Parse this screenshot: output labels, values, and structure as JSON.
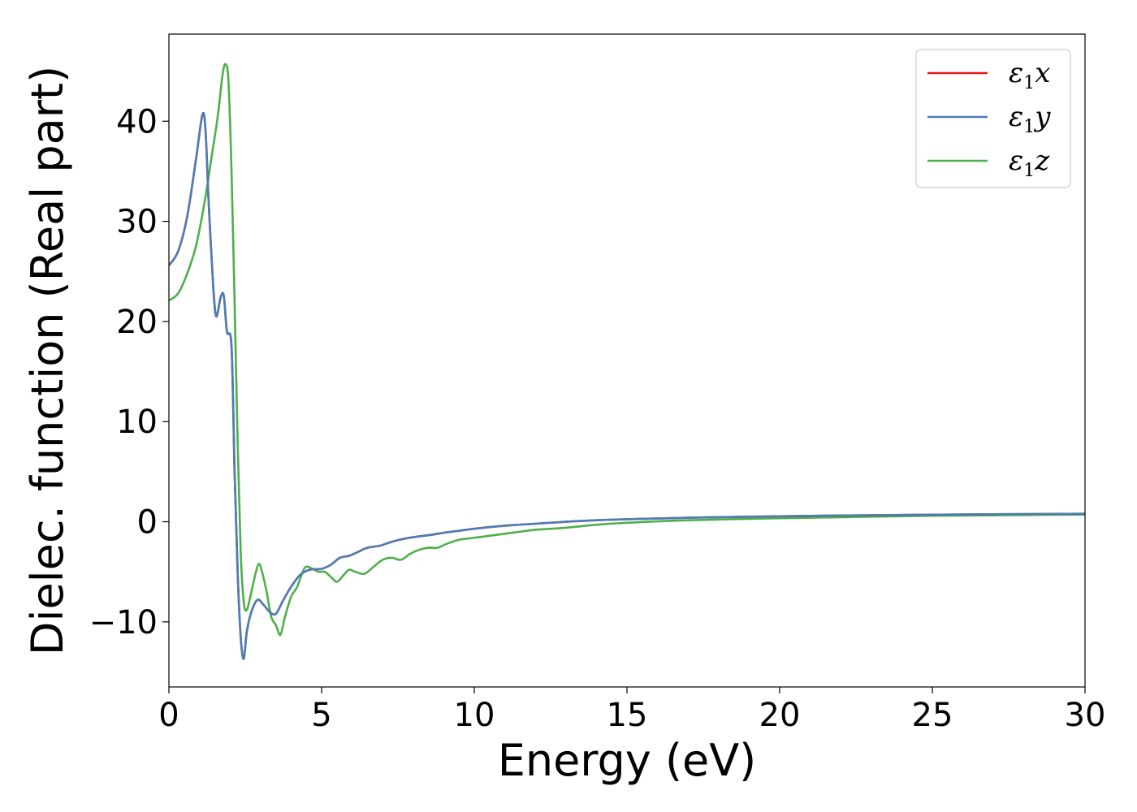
{
  "chart_data": {
    "type": "line",
    "title": "",
    "xlabel": "Energy (eV)",
    "ylabel": "Dielec. function (Real part)",
    "xlim": [
      0,
      30
    ],
    "ylim": [
      -16.5,
      48.7
    ],
    "xticks": [
      0,
      5,
      10,
      15,
      20,
      25,
      30
    ],
    "xtick_labels": [
      "0",
      "5",
      "10",
      "15",
      "20",
      "25",
      "30"
    ],
    "yticks": [
      -10,
      0,
      10,
      20,
      30,
      40
    ],
    "ytick_labels": [
      "−10",
      "0",
      "10",
      "20",
      "30",
      "40"
    ],
    "grid": false,
    "legend_position": "top-right",
    "series": [
      {
        "name": "ε1x",
        "legend_main": "ε",
        "legend_sub": "1",
        "legend_var": "x",
        "color": "#e41a1c",
        "x": [
          0,
          0.3,
          0.6,
          0.9,
          1.1,
          1.2,
          1.3,
          1.45,
          1.55,
          1.7,
          1.8,
          1.9,
          2.05,
          2.15,
          2.25,
          2.35,
          2.45,
          2.55,
          2.7,
          2.9,
          3.1,
          3.3,
          3.5,
          3.75,
          4.0,
          4.3,
          4.6,
          5.0,
          5.3,
          5.6,
          5.9,
          6.2,
          6.5,
          6.9,
          7.3,
          7.7,
          8.1,
          8.6,
          9.0,
          9.5,
          10.0,
          11.0,
          12.0,
          13.0,
          14.0,
          15.0,
          17.0,
          20.0,
          23.0,
          25.0,
          27.0,
          30.0
        ],
        "y": [
          25.6,
          27.0,
          30.5,
          36.5,
          40.7,
          39.0,
          32.0,
          23.5,
          20.5,
          22.5,
          22.5,
          19.0,
          17.5,
          5.0,
          -5.0,
          -11.5,
          -13.7,
          -11.0,
          -9.0,
          -7.8,
          -8.3,
          -9.0,
          -9.2,
          -7.8,
          -6.5,
          -5.3,
          -4.8,
          -4.7,
          -4.3,
          -3.6,
          -3.4,
          -3.0,
          -2.6,
          -2.4,
          -2.0,
          -1.7,
          -1.5,
          -1.3,
          -1.1,
          -0.9,
          -0.7,
          -0.4,
          -0.2,
          0.0,
          0.15,
          0.25,
          0.4,
          0.55,
          0.65,
          0.7,
          0.75,
          0.8
        ]
      },
      {
        "name": "ε1y",
        "legend_main": "ε",
        "legend_sub": "1",
        "legend_var": "y",
        "color": "#4a7eb5",
        "x": [
          0,
          0.3,
          0.6,
          0.9,
          1.1,
          1.2,
          1.3,
          1.45,
          1.55,
          1.7,
          1.8,
          1.9,
          2.05,
          2.15,
          2.25,
          2.35,
          2.45,
          2.55,
          2.7,
          2.9,
          3.1,
          3.3,
          3.5,
          3.75,
          4.0,
          4.3,
          4.6,
          5.0,
          5.3,
          5.6,
          5.9,
          6.2,
          6.5,
          6.9,
          7.3,
          7.7,
          8.1,
          8.6,
          9.0,
          9.5,
          10.0,
          11.0,
          12.0,
          13.0,
          14.0,
          15.0,
          17.0,
          20.0,
          23.0,
          25.0,
          27.0,
          30.0
        ],
        "y": [
          25.6,
          27.0,
          30.5,
          36.5,
          40.7,
          39.0,
          32.0,
          23.5,
          20.5,
          22.5,
          22.5,
          19.0,
          17.5,
          5.0,
          -5.0,
          -11.5,
          -13.7,
          -11.0,
          -9.0,
          -7.8,
          -8.3,
          -9.0,
          -9.2,
          -7.8,
          -6.5,
          -5.3,
          -4.8,
          -4.7,
          -4.3,
          -3.6,
          -3.4,
          -3.0,
          -2.6,
          -2.4,
          -2.0,
          -1.7,
          -1.5,
          -1.3,
          -1.1,
          -0.9,
          -0.7,
          -0.4,
          -0.2,
          0.0,
          0.15,
          0.25,
          0.4,
          0.55,
          0.65,
          0.7,
          0.75,
          0.8
        ]
      },
      {
        "name": "ε1z",
        "legend_main": "ε",
        "legend_sub": "1",
        "legend_var": "z",
        "color": "#4daf4a",
        "x": [
          0,
          0.3,
          0.6,
          0.9,
          1.2,
          1.4,
          1.6,
          1.75,
          1.85,
          1.95,
          2.05,
          2.15,
          2.25,
          2.35,
          2.45,
          2.55,
          2.7,
          2.85,
          2.95,
          3.05,
          3.2,
          3.35,
          3.5,
          3.65,
          3.8,
          4.0,
          4.2,
          4.45,
          4.7,
          4.9,
          5.1,
          5.3,
          5.5,
          5.7,
          5.9,
          6.1,
          6.4,
          6.7,
          7.0,
          7.3,
          7.6,
          7.9,
          8.2,
          8.5,
          8.8,
          9.1,
          9.5,
          10.0,
          10.5,
          11.0,
          11.5,
          12.0,
          13.0,
          14.0,
          15.0,
          17.0,
          20.0,
          23.0,
          25.0,
          27.0,
          30.0
        ],
        "y": [
          22.1,
          22.8,
          24.8,
          27.7,
          32.5,
          36.5,
          40.5,
          44.5,
          45.7,
          44.0,
          35.0,
          22.0,
          8.0,
          -3.0,
          -8.0,
          -8.8,
          -7.0,
          -5.0,
          -4.2,
          -5.0,
          -7.0,
          -9.5,
          -10.3,
          -11.3,
          -9.5,
          -7.5,
          -6.5,
          -4.6,
          -4.7,
          -5.0,
          -5.0,
          -5.5,
          -6.0,
          -5.4,
          -4.8,
          -5.0,
          -5.2,
          -4.5,
          -3.8,
          -3.6,
          -3.8,
          -3.2,
          -2.8,
          -2.6,
          -2.6,
          -2.2,
          -1.8,
          -1.6,
          -1.4,
          -1.2,
          -1.0,
          -0.8,
          -0.6,
          -0.3,
          -0.1,
          0.15,
          0.35,
          0.5,
          0.6,
          0.65,
          0.72
        ]
      }
    ]
  }
}
